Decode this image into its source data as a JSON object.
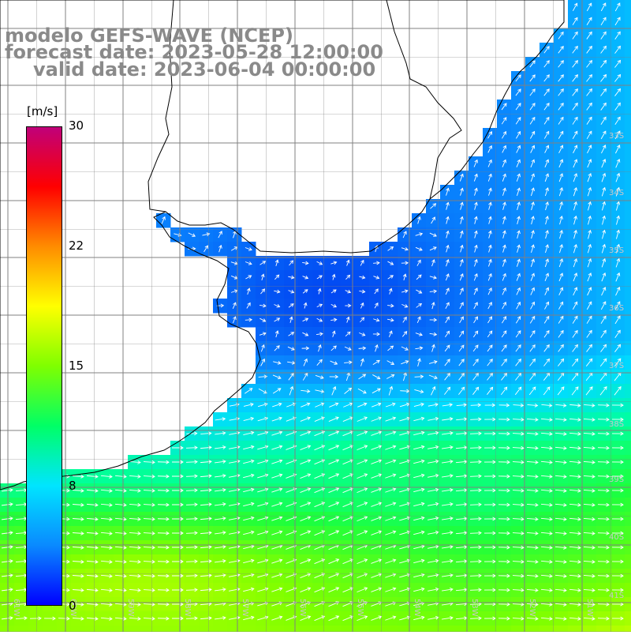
{
  "title": {
    "line1": "modelo GEFS-WAVE (NCEP)",
    "line2": "forecast date: 2023-05-28 12:00:00",
    "line3": "valid date: 2023-06-04 00:00:00"
  },
  "colorbar": {
    "unit": "[m/s]",
    "ticks": [
      "30",
      "22",
      "15",
      "8",
      "0"
    ],
    "colors": [
      "#0000ff",
      "#0a8aff",
      "#00e5ff",
      "#00ff66",
      "#7fff00",
      "#ffff00",
      "#ff8c00",
      "#ff0000",
      "#c0007a"
    ]
  },
  "grid": {
    "lat_labels": [
      "33S",
      "34S",
      "35S",
      "36S",
      "37S",
      "38S",
      "39S",
      "40S",
      "41S"
    ],
    "lon_labels": [
      "61W",
      "60W",
      "59W",
      "58W",
      "57W",
      "56W",
      "55W",
      "54W",
      "53W",
      "52W",
      "51W"
    ]
  },
  "field": {
    "wind_speed_range_ms": [
      0,
      30
    ],
    "shelf_calm_region": "low",
    "southern_region": "high"
  },
  "colors": {
    "title": "#8a8a8a",
    "land": "#ffffff",
    "grid": "#808080",
    "coast": "#000000",
    "arrows": "#ffffff"
  }
}
